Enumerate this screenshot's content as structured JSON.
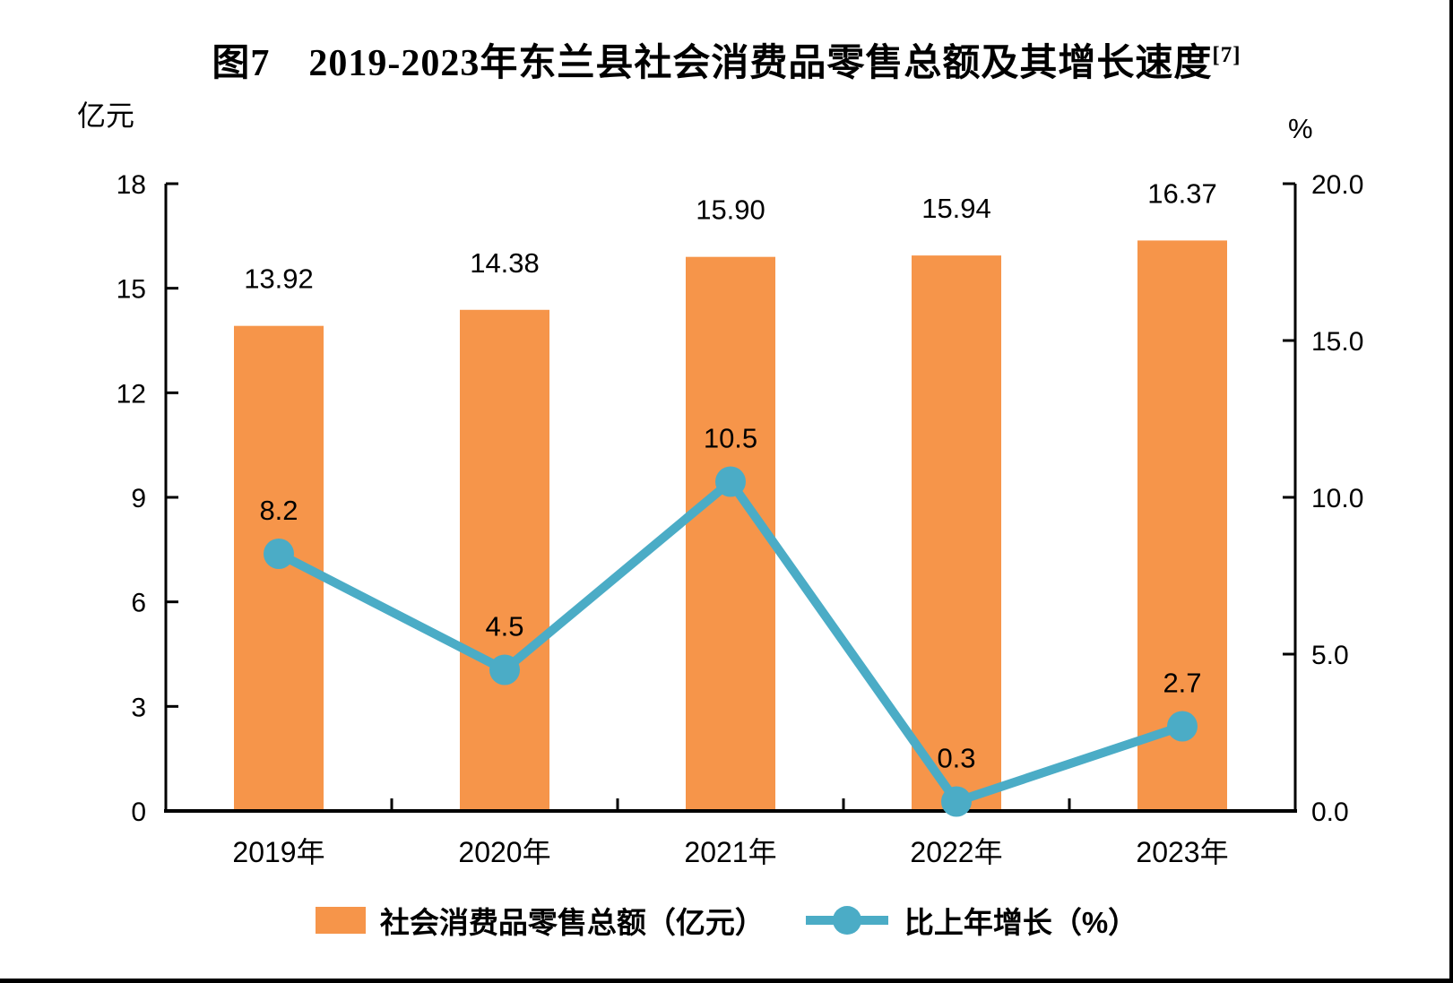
{
  "figure": {
    "title": "图7　2019-2023年东兰县社会消费品零售总额及其增长速度",
    "title_footnote": "[7]"
  },
  "colors": {
    "bar": "#F6954A",
    "line": "#4BACC6",
    "axis": "#000000",
    "text": "#000000"
  },
  "chart_data": {
    "type": "combo",
    "subtype": [
      "bar",
      "line"
    ],
    "title": "图7　2019-2023年东兰县社会消费品零售总额及其增长速度",
    "title_footnote": "[7]",
    "categories": [
      "2019年",
      "2020年",
      "2021年",
      "2022年",
      "2023年"
    ],
    "series": [
      {
        "name": "社会消费品零售总额（亿元）",
        "type": "bar",
        "axis": "left",
        "color": "#F6954A",
        "values": [
          13.92,
          14.38,
          15.9,
          15.94,
          16.37
        ],
        "labels": [
          "13.92",
          "14.38",
          "15.90",
          "15.94",
          "16.37"
        ]
      },
      {
        "name": "比上年增长（%）",
        "type": "line",
        "axis": "right",
        "color": "#4BACC6",
        "values": [
          8.2,
          4.5,
          10.5,
          0.3,
          2.7
        ],
        "labels": [
          "8.2",
          "4.5",
          "10.5",
          "0.3",
          "2.7"
        ]
      }
    ],
    "left_axis": {
      "unit": "亿元",
      "min": 0,
      "max": 18,
      "tick_labels": [
        "18",
        "15",
        "12",
        "9",
        "6",
        "3",
        "0"
      ]
    },
    "right_axis": {
      "unit": "%",
      "min": 0,
      "max": 20,
      "tick_labels": [
        "20.0",
        "15.0",
        "10.0",
        "5.0",
        "0.0"
      ]
    },
    "legend_position": "bottom",
    "grid": false,
    "data_labels": true
  }
}
